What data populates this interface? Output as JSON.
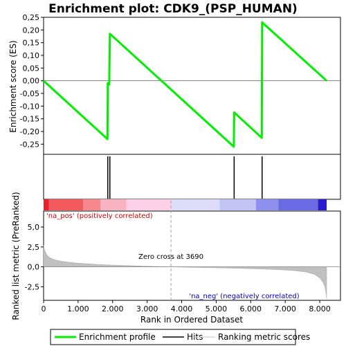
{
  "chart_data": {
    "type": "line",
    "title": "Enrichment plot: CDK9_(PSP_HUMAN)",
    "top_panel": {
      "ylabel": "Enrichment score (ES)",
      "ylim": [
        -0.29,
        0.25
      ],
      "yticks": [
        "0,25",
        "0,20",
        "0,15",
        "0,10",
        "0,05",
        "0,00",
        "-0,05",
        "-0,10",
        "-0,15",
        "-0,20",
        "-0,25"
      ],
      "ytick_values": [
        0.25,
        0.2,
        0.15,
        0.1,
        0.05,
        0.0,
        -0.05,
        -0.1,
        -0.15,
        -0.2,
        -0.25
      ],
      "series": [
        {
          "name": "Enrichment profile",
          "color": "#00ee00",
          "x": [
            0,
            1850,
            1860,
            1880,
            1900,
            1920,
            5510,
            5520,
            6320,
            6330,
            8200
          ],
          "y": [
            0.0,
            -0.23,
            -0.01,
            -0.015,
            -0.015,
            0.185,
            -0.26,
            -0.125,
            -0.225,
            0.23,
            0.0
          ]
        }
      ]
    },
    "hits": {
      "name": "Hits",
      "positions": [
        1860,
        1920,
        5520,
        6330
      ]
    },
    "color_bar": {
      "segments": [
        {
          "x0": 0,
          "x1": 150,
          "color": "#e8202a"
        },
        {
          "x0": 150,
          "x1": 1150,
          "color": "#f25a5e"
        },
        {
          "x0": 1150,
          "x1": 1650,
          "color": "#f6888d"
        },
        {
          "x0": 1650,
          "x1": 2400,
          "color": "#f9b3c2"
        },
        {
          "x0": 2400,
          "x1": 3700,
          "color": "#fbcfe8"
        },
        {
          "x0": 3700,
          "x1": 5100,
          "color": "#dcdcf8"
        },
        {
          "x0": 5100,
          "x1": 6150,
          "color": "#c4c4f6"
        },
        {
          "x0": 6150,
          "x1": 6800,
          "color": "#8f8ff0"
        },
        {
          "x0": 6800,
          "x1": 7950,
          "color": "#6a6ae4"
        },
        {
          "x0": 7950,
          "x1": 8200,
          "color": "#2a1ccc"
        }
      ]
    },
    "bottom_panel": {
      "ylabel": "Ranked list metric (PreRanked)",
      "ylim": [
        -4.2,
        7.0
      ],
      "yticks": [
        "5,0",
        "2,5",
        "0,0",
        "-2,5"
      ],
      "ytick_values": [
        5.0,
        2.5,
        0.0,
        -2.5
      ],
      "series": [
        {
          "name": "Ranking metric scores",
          "color": "#c0c0c0",
          "x": [
            0,
            30,
            80,
            150,
            250,
            400,
            600,
            900,
            1200,
            1600,
            2000,
            2500,
            3000,
            3500,
            3690,
            4200,
            5000,
            5600,
            6200,
            6800,
            7200,
            7600,
            7850,
            8000,
            8100,
            8150,
            8190,
            8200
          ],
          "y": [
            2.7,
            2.1,
            1.6,
            1.25,
            1.0,
            0.8,
            0.65,
            0.5,
            0.4,
            0.3,
            0.22,
            0.15,
            0.08,
            0.02,
            0.0,
            -0.05,
            -0.12,
            -0.18,
            -0.25,
            -0.35,
            -0.45,
            -0.65,
            -0.95,
            -1.4,
            -2.0,
            -2.6,
            -3.5,
            -4.0
          ]
        }
      ],
      "zero_cross_label": "Zero cross at 3690",
      "zero_cross": 3690,
      "pos_label": "'na_pos' (positively correlated)",
      "neg_label": "'na_neg' (negatively correlated)"
    },
    "xlabel": "Rank in Ordered Dataset",
    "xlim": [
      0,
      8600
    ],
    "xticks": [
      "0",
      "1.000",
      "2.000",
      "3.000",
      "4.000",
      "5.000",
      "6.000",
      "7.000",
      "8.000"
    ],
    "xtick_values": [
      0,
      1000,
      2000,
      3000,
      4000,
      5000,
      6000,
      7000,
      8000
    ],
    "legend": {
      "placement": "bottom",
      "items": [
        {
          "label": "Enrichment profile",
          "kind": "thick-line",
          "color": "#00ee00"
        },
        {
          "label": "Hits",
          "kind": "line",
          "color": "#000000"
        },
        {
          "label": "Ranking metric scores",
          "kind": "thin-line",
          "color": "#c0c0c0"
        }
      ]
    },
    "colors": {
      "axis": "#000000",
      "zero_line": "#808080",
      "pos_text": "#cc0000",
      "neg_text": "#0000cc"
    }
  }
}
